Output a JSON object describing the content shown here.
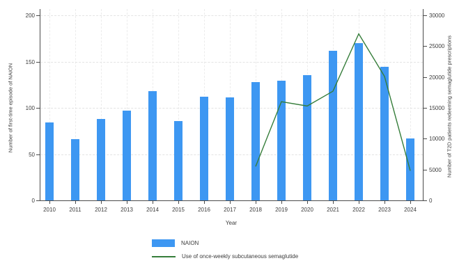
{
  "figure": {
    "background": "#ffffff"
  },
  "chart_data": {
    "type": "bar+line",
    "title": "",
    "xlabel": "Year",
    "categories": [
      "2010",
      "2011",
      "2012",
      "2013",
      "2014",
      "2015",
      "2016",
      "2017",
      "2018",
      "2019",
      "2020",
      "2021",
      "2022",
      "2023",
      "2024"
    ],
    "left_axis": {
      "label": "Number of first-time episode of NAION",
      "ticks": [
        0,
        50,
        100,
        150,
        200
      ],
      "range": [
        0,
        200
      ]
    },
    "right_axis": {
      "label": "Number of T2D patients redeeming semaglutide prescriptions",
      "ticks": [
        0,
        5000,
        10000,
        15000,
        20000,
        25000,
        30000
      ],
      "range": [
        0,
        30000
      ]
    },
    "grid": {
      "horizontal": true,
      "vertical": true
    },
    "legend_position": "bottom",
    "series": [
      {
        "name": "NAION",
        "type": "bar",
        "axis": "left",
        "color": "#3d97f2",
        "values": [
          84,
          66,
          88,
          97,
          118,
          86,
          112,
          111,
          128,
          129,
          135,
          162,
          170,
          144,
          67
        ]
      },
      {
        "name": "Use of once-weekly subcutaneous semaglutide",
        "type": "line",
        "axis": "right",
        "color": "#357d3a",
        "x": [
          "2018",
          "2019",
          "2020",
          "2021",
          "2022",
          "2023",
          "2024"
        ],
        "values": [
          5500,
          16000,
          15300,
          17700,
          27000,
          20100,
          4800
        ]
      }
    ]
  }
}
